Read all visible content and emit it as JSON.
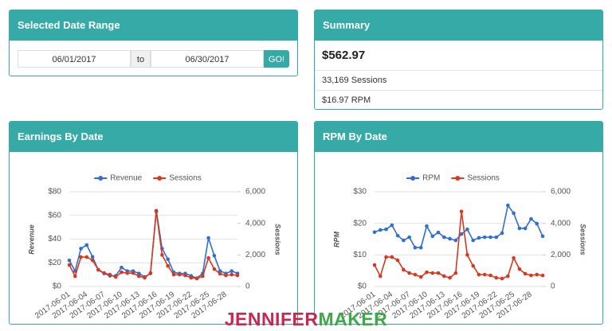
{
  "date_range": {
    "title": "Selected Date Range",
    "start": "06/01/2017",
    "separator": "to",
    "end": "06/30/2017",
    "button": "GO!"
  },
  "summary": {
    "title": "Summary",
    "earnings": "$562.97",
    "sessions": "33,169 Sessions",
    "rpm": "$16.97 RPM"
  },
  "chart_data": [
    {
      "type": "line",
      "title": "Earnings By Date",
      "categories": [
        "2017-06-01",
        null,
        null,
        "2017-06-04",
        null,
        null,
        "2017-06-07",
        null,
        null,
        "2017-06-10",
        null,
        null,
        "2017-06-13",
        null,
        null,
        "2017-06-16",
        null,
        null,
        "2017-06-19",
        null,
        null,
        "2017-06-22",
        null,
        null,
        "2017-06-25",
        null,
        null,
        "2017-06-28",
        null,
        null
      ],
      "series": [
        {
          "name": "Revenue",
          "color": "#2f6fd0",
          "values": [
            22,
            13,
            32,
            35,
            25,
            14,
            11,
            9,
            9,
            16,
            13,
            13,
            11,
            8,
            11,
            64,
            32,
            23,
            12,
            11,
            11,
            9,
            7,
            11,
            41,
            26,
            13,
            11,
            13,
            11
          ]
        },
        {
          "name": "Sessions",
          "color": "#d9381e",
          "axis": "y2",
          "values": [
            1360,
            650,
            1860,
            1860,
            1660,
            1060,
            850,
            750,
            600,
            900,
            850,
            850,
            650,
            550,
            850,
            4750,
            2000,
            1300,
            750,
            750,
            700,
            550,
            500,
            650,
            1800,
            1100,
            800,
            700,
            750,
            700
          ]
        }
      ],
      "y_label": "Revenue",
      "y2_label": "Sessions",
      "ylim": [
        0,
        80
      ],
      "yticks": [
        {
          "value": 0,
          "label": "$0"
        },
        {
          "value": 20,
          "label": "$20"
        },
        {
          "value": 40,
          "label": "$40"
        },
        {
          "value": 60,
          "label": "$60"
        },
        {
          "value": 80,
          "label": "$80"
        }
      ],
      "y2lim": [
        0,
        6000
      ],
      "y2ticks": [
        0,
        {
          "value": 2000,
          "label": "2,000"
        },
        {
          "value": 4000,
          "label": "4,000"
        },
        {
          "value": 6000,
          "label": "6,000"
        }
      ],
      "grid": true,
      "legend": "top"
    },
    {
      "type": "line",
      "title": "RPM By Date",
      "categories": [
        "2017-06-01",
        null,
        null,
        "2017-06-04",
        null,
        null,
        "2017-06-07",
        null,
        null,
        "2017-06-10",
        null,
        null,
        "2017-06-13",
        null,
        null,
        "2017-06-16",
        null,
        null,
        "2017-06-19",
        null,
        null,
        "2017-06-22",
        null,
        null,
        "2017-06-25",
        null,
        null,
        "2017-06-28",
        null,
        null
      ],
      "series": [
        {
          "name": "RPM",
          "color": "#2f6fd0",
          "values": [
            17.2,
            17.9,
            18.1,
            19.4,
            16.1,
            14.6,
            15.6,
            12.3,
            12.3,
            19.1,
            15.9,
            17.1,
            15.6,
            15.1,
            14.6,
            16.6,
            18.1,
            14.6,
            15.4,
            15.6,
            15.6,
            15.6,
            16.9,
            25.7,
            23.2,
            18.4,
            18.4,
            21.4,
            19.9,
            15.9
          ]
        },
        {
          "name": "Sessions",
          "color": "#d9381e",
          "axis": "y2",
          "values": [
            1360,
            650,
            1860,
            1860,
            1660,
            1060,
            850,
            750,
            600,
            900,
            850,
            850,
            650,
            550,
            850,
            4750,
            2000,
            1300,
            750,
            750,
            700,
            550,
            500,
            650,
            1800,
            1100,
            800,
            700,
            750,
            700
          ]
        }
      ],
      "y_label": "RPM",
      "y2_label": "Sessions",
      "ylim": [
        0,
        30
      ],
      "yticks": [
        {
          "value": 0,
          "label": "$0"
        },
        {
          "value": 10,
          "label": "$10"
        },
        {
          "value": 20,
          "label": "$20"
        },
        {
          "value": 30,
          "label": "$30"
        }
      ],
      "y2lim": [
        0,
        6000
      ],
      "y2ticks": [
        0,
        {
          "value": 2000,
          "label": "2,000"
        },
        {
          "value": 4000,
          "label": "4,000"
        },
        {
          "value": 6000,
          "label": "6,000"
        }
      ],
      "grid": true,
      "legend": "top"
    }
  ],
  "watermark": {
    "first": "JENNIFER",
    "second": "MAKER"
  }
}
